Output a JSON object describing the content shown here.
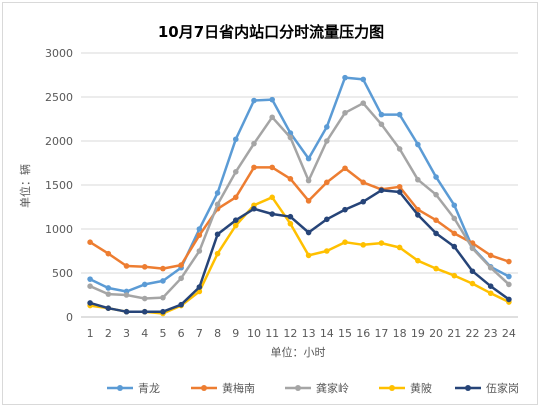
{
  "chart_data": {
    "type": "line",
    "title": "10月7日省内站口分时流量压力图",
    "xlabel": "单位：小时",
    "ylabel": "单位：辆",
    "x": [
      1,
      2,
      3,
      4,
      5,
      6,
      7,
      8,
      9,
      10,
      11,
      12,
      13,
      14,
      15,
      16,
      17,
      18,
      19,
      20,
      21,
      22,
      23,
      24
    ],
    "ylim": [
      0,
      3000
    ],
    "yticks": [
      0,
      500,
      1000,
      1500,
      2000,
      2500,
      3000
    ],
    "grid": true,
    "legend_position": "bottom",
    "series": [
      {
        "name": "青龙",
        "color": "#5b9bd5",
        "values": [
          430,
          330,
          290,
          370,
          410,
          560,
          1000,
          1410,
          2020,
          2460,
          2470,
          2090,
          1800,
          2160,
          2720,
          2700,
          2300,
          2300,
          1960,
          1590,
          1270,
          790,
          570,
          460
        ]
      },
      {
        "name": "黄梅南",
        "color": "#ed7d31",
        "values": [
          850,
          720,
          580,
          570,
          550,
          590,
          930,
          1230,
          1360,
          1700,
          1700,
          1570,
          1320,
          1530,
          1690,
          1530,
          1450,
          1480,
          1220,
          1100,
          950,
          840,
          700,
          630
        ]
      },
      {
        "name": "龚家岭",
        "color": "#a5a5a5",
        "values": [
          350,
          260,
          250,
          210,
          220,
          440,
          750,
          1280,
          1650,
          1970,
          2270,
          2040,
          1550,
          2000,
          2320,
          2430,
          2190,
          1910,
          1560,
          1390,
          1120,
          780,
          560,
          370
        ]
      },
      {
        "name": "黄陂",
        "color": "#ffc000",
        "values": [
          130,
          100,
          60,
          60,
          40,
          130,
          290,
          720,
          1040,
          1270,
          1360,
          1060,
          700,
          750,
          850,
          820,
          840,
          790,
          640,
          550,
          470,
          380,
          270,
          170
        ]
      },
      {
        "name": "伍家岗",
        "color": "#264478",
        "values": [
          160,
          100,
          60,
          60,
          60,
          140,
          340,
          940,
          1100,
          1230,
          1170,
          1140,
          960,
          1110,
          1220,
          1310,
          1440,
          1420,
          1160,
          950,
          800,
          520,
          350,
          200
        ]
      }
    ]
  }
}
